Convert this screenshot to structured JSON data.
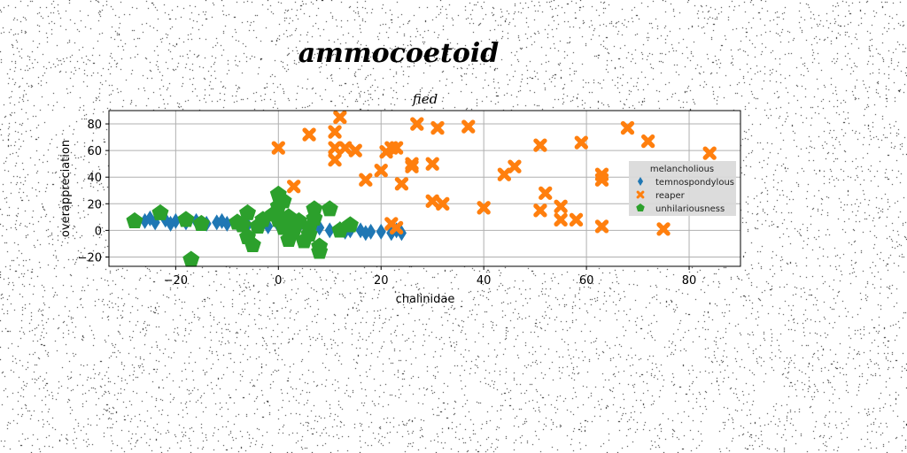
{
  "chart_data": {
    "type": "scatter",
    "title": "ammocoetoid",
    "subtitle": "fied",
    "xlabel": "chalinidae",
    "ylabel": "overappreciation",
    "xlim": [
      -33,
      90
    ],
    "ylim": [
      -27,
      90
    ],
    "xticks": [
      -20,
      0,
      20,
      40,
      60,
      80
    ],
    "yticks": [
      -20,
      0,
      20,
      40,
      60,
      80
    ],
    "grid": true,
    "legend": {
      "title": "melancholious",
      "position": "right"
    },
    "series": [
      {
        "name": "temnospondylous",
        "marker": "diamond",
        "color": "#1f77b4",
        "points": [
          [
            -26,
            7
          ],
          [
            -24,
            6
          ],
          [
            -22,
            8
          ],
          [
            -20,
            7
          ],
          [
            -18,
            6
          ],
          [
            -16,
            7
          ],
          [
            -14,
            5
          ],
          [
            -12,
            6
          ],
          [
            -10,
            5
          ],
          [
            -8,
            5
          ],
          [
            -6,
            4
          ],
          [
            -4,
            4
          ],
          [
            -2,
            3
          ],
          [
            0,
            4
          ],
          [
            2,
            2
          ],
          [
            4,
            3
          ],
          [
            6,
            1
          ],
          [
            8,
            2
          ],
          [
            10,
            0
          ],
          [
            12,
            1
          ],
          [
            14,
            0
          ],
          [
            16,
            0
          ],
          [
            18,
            -1
          ],
          [
            20,
            -1
          ],
          [
            22,
            -2
          ],
          [
            24,
            -2
          ],
          [
            -25,
            9
          ],
          [
            -21,
            5
          ],
          [
            -11,
            7
          ],
          [
            -7,
            6
          ],
          [
            3,
            1
          ],
          [
            13,
            -1
          ],
          [
            17,
            -2
          ],
          [
            23,
            0
          ]
        ]
      },
      {
        "name": "reaper",
        "marker": "x",
        "color": "#ff7f0e",
        "points": [
          [
            0,
            62
          ],
          [
            3,
            33
          ],
          [
            6,
            72
          ],
          [
            11,
            53
          ],
          [
            11,
            62
          ],
          [
            11,
            74
          ],
          [
            12,
            85
          ],
          [
            13,
            62
          ],
          [
            15,
            60
          ],
          [
            17,
            38
          ],
          [
            20,
            45
          ],
          [
            21,
            59
          ],
          [
            22,
            62
          ],
          [
            23,
            62
          ],
          [
            24,
            35
          ],
          [
            26,
            48
          ],
          [
            26,
            50
          ],
          [
            27,
            80
          ],
          [
            30,
            50
          ],
          [
            30,
            22
          ],
          [
            31,
            77
          ],
          [
            32,
            20
          ],
          [
            37,
            78
          ],
          [
            40,
            17
          ],
          [
            44,
            42
          ],
          [
            46,
            48
          ],
          [
            51,
            15
          ],
          [
            51,
            64
          ],
          [
            52,
            28
          ],
          [
            55,
            18
          ],
          [
            55,
            8
          ],
          [
            58,
            8
          ],
          [
            59,
            66
          ],
          [
            63,
            38
          ],
          [
            63,
            42
          ],
          [
            63,
            3
          ],
          [
            68,
            77
          ],
          [
            72,
            67
          ],
          [
            75,
            1
          ],
          [
            84,
            58
          ],
          [
            22,
            5
          ],
          [
            23,
            2
          ]
        ]
      },
      {
        "name": "unhilariousness",
        "marker": "pentagon",
        "color": "#2ca02c",
        "points": [
          [
            -28,
            7
          ],
          [
            -23,
            13
          ],
          [
            -18,
            8
          ],
          [
            -17,
            -22
          ],
          [
            -15,
            5
          ],
          [
            -6,
            13
          ],
          [
            -7,
            4
          ],
          [
            -6,
            -5
          ],
          [
            -5,
            -11
          ],
          [
            -4,
            3
          ],
          [
            -3,
            8
          ],
          [
            0,
            27
          ],
          [
            0,
            18
          ],
          [
            0,
            8
          ],
          [
            1,
            2
          ],
          [
            2,
            -7
          ],
          [
            2,
            10
          ],
          [
            3,
            0
          ],
          [
            4,
            7
          ],
          [
            5,
            -8
          ],
          [
            6,
            2
          ],
          [
            7,
            16
          ],
          [
            7,
            9
          ],
          [
            8,
            -16
          ],
          [
            8,
            -12
          ],
          [
            10,
            16
          ],
          [
            12,
            0
          ],
          [
            14,
            4
          ],
          [
            1,
            22
          ],
          [
            -1,
            12
          ],
          [
            -8,
            6
          ],
          [
            6,
            -3
          ]
        ]
      }
    ]
  }
}
